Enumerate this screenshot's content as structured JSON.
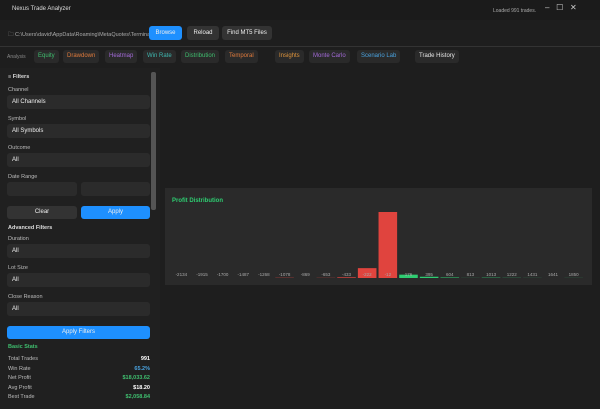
{
  "window": {
    "title": "Nexus Trade Analyzer",
    "status": "Loaded 991 trades."
  },
  "toolbar": {
    "path": "C:\\Users\\david\\AppData\\Roaming\\MetaQuotes\\Termina...",
    "buttons": [
      "Browse",
      "Reload",
      "Find MT5 Files"
    ]
  },
  "tabs": {
    "label": "Analysis",
    "items": [
      {
        "text": "Equity",
        "color": "#3fbf6f"
      },
      {
        "text": "Drawdown",
        "color": "#e07b3c"
      },
      {
        "text": "Heatmap",
        "color": "#a36ad8"
      },
      {
        "text": "Win Rate",
        "color": "#3fb8b0"
      },
      {
        "text": "Distribution",
        "color": "#3fbf6f"
      },
      {
        "text": "Temporal",
        "color": "#e07b3c"
      },
      {
        "text": "Insights",
        "color": "#e0953c"
      },
      {
        "text": "Monte Carlo",
        "color": "#a36ad8"
      },
      {
        "text": "Scenario Lab",
        "color": "#4aa3e0"
      },
      {
        "text": "Trade History",
        "color": "#e8e8e8"
      }
    ]
  },
  "filters": {
    "title": "Filters",
    "fields": [
      {
        "label": "Channel",
        "value": "All Channels"
      },
      {
        "label": "Symbol",
        "value": "All Symbols"
      },
      {
        "label": "Outcome",
        "value": "All"
      }
    ],
    "date_label": "Date Range",
    "clear": "Clear",
    "apply": "Apply",
    "advanced_title": "Advanced Filters",
    "advanced": [
      {
        "label": "Duration",
        "value": "All"
      },
      {
        "label": "Lot Size",
        "value": "All"
      },
      {
        "label": "Close Reason",
        "value": "All"
      }
    ],
    "apply_filters": "Apply Filters"
  },
  "stats": {
    "title": "Basic Stats",
    "rows": [
      {
        "label": "Total Trades",
        "value": "991",
        "color": "#ffffff"
      },
      {
        "label": "Win Rate",
        "value": "65.2%",
        "color": "#4aa3e0"
      },
      {
        "label": "Net Profit",
        "value": "$18,033.62",
        "color": "#3fbf6f"
      },
      {
        "label": "Avg Profit",
        "value": "$18.20",
        "color": "#ffffff"
      },
      {
        "label": "Best Trade",
        "value": "$2,058.84",
        "color": "#3fbf6f"
      }
    ]
  },
  "chart_data": {
    "type": "bar",
    "title": "Profit Distribution",
    "categories": [
      "-2134",
      "-1915",
      "-1700",
      "-1487",
      "-1268",
      "-1078",
      "-869",
      "-653",
      "-433",
      "-222",
      "-12",
      "176",
      "395",
      "604",
      "813",
      "1013",
      "1222",
      "1431",
      "1641",
      "1850"
    ],
    "values": [
      0,
      0,
      0,
      0,
      0,
      3,
      0,
      2,
      8,
      118,
      790,
      40,
      15,
      6,
      1,
      4,
      2,
      1,
      0,
      1
    ],
    "negative_color": "#e0443e",
    "positive_color": "#2ecc71"
  }
}
